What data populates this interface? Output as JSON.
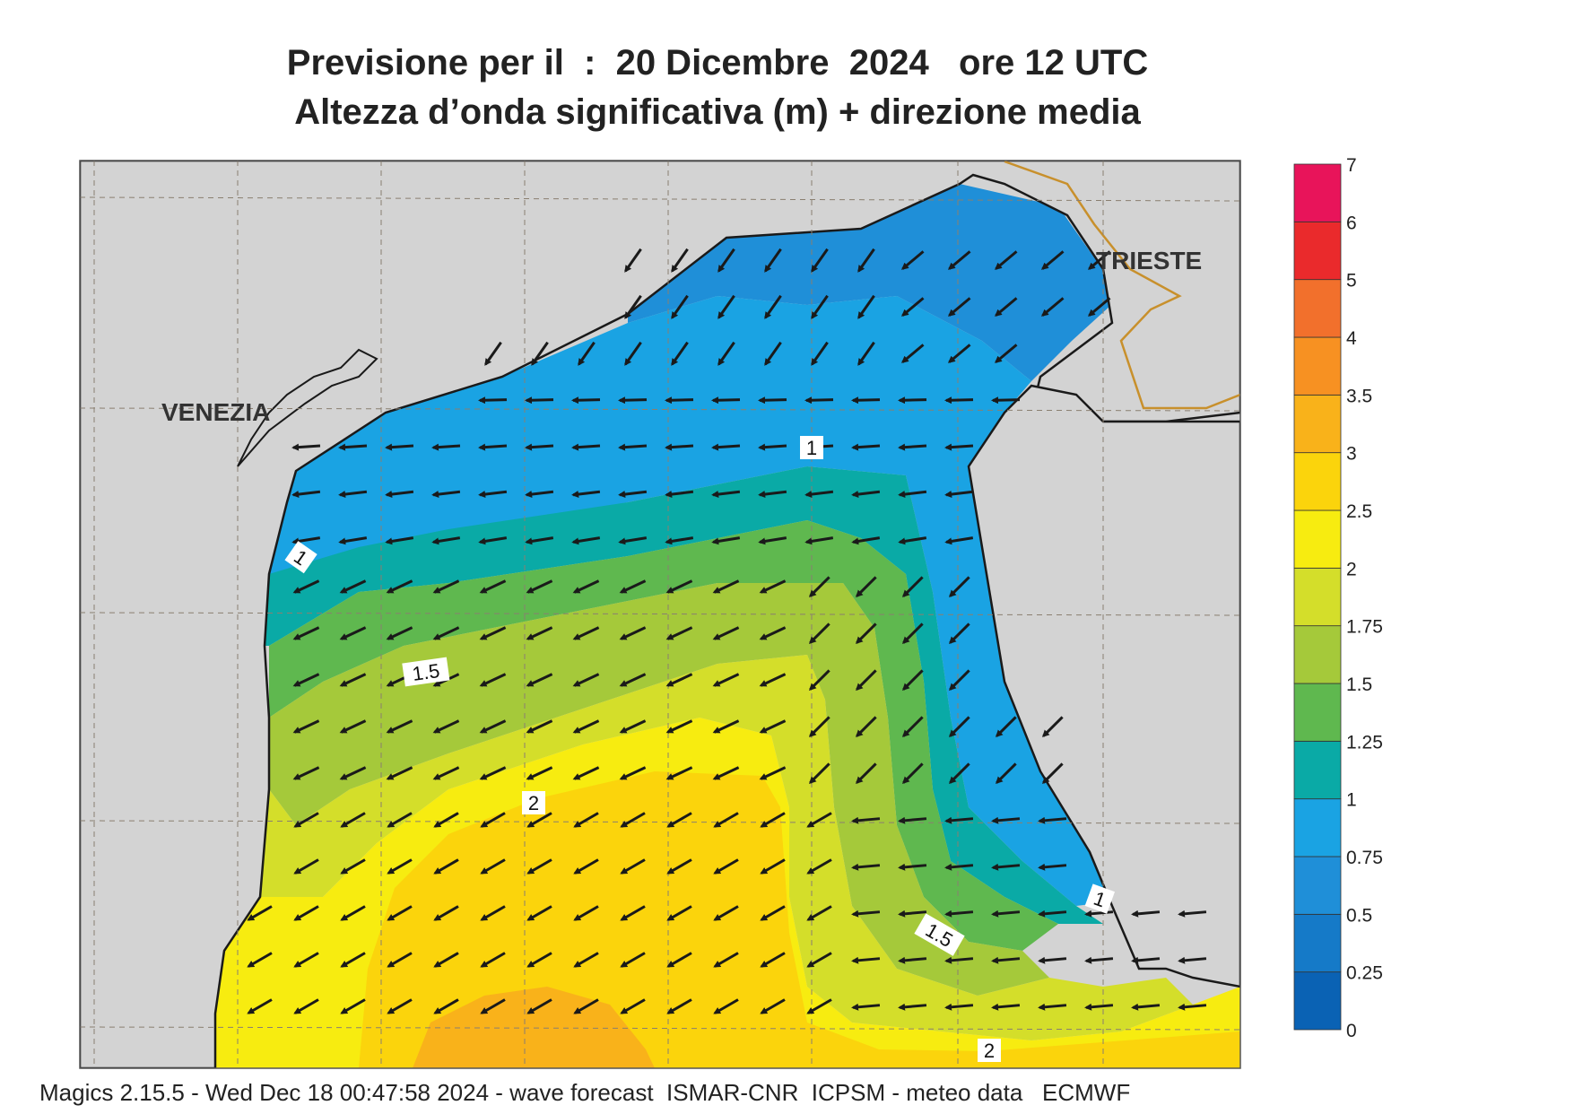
{
  "title_line1": "Previsione per il  :  20 Dicembre  2024   ore 12 UTC",
  "title_line2": "Altezza d’onda significativa (m) + direzione media",
  "footer": "Magics 2.15.5 - Wed Dec 18 00:47:58 2024 - wave forecast  ISMAR-CNR  ICPSM - meteo data   ECMWF",
  "places": [
    {
      "name": "VENEZIA"
    },
    {
      "name": "TRIESTE"
    }
  ],
  "contour_labels": [
    "1",
    "1",
    "1.5",
    "2",
    "1.5",
    "2",
    "1"
  ],
  "legend": {
    "levels": [
      "0",
      "0.25",
      "0.5",
      "0.75",
      "1",
      "1.25",
      "1.5",
      "1.75",
      "2",
      "2.5",
      "3",
      "3.5",
      "4",
      "5",
      "6",
      "7"
    ],
    "colors": [
      "#0a62b4",
      "#157ac8",
      "#1f8fd8",
      "#1aa3e3",
      "#0aaaa6",
      "#5fb84f",
      "#a5c93a",
      "#d4de2a",
      "#f7ec10",
      "#fbd40c",
      "#f9b21a",
      "#f79122",
      "#f2702c",
      "#ea2a2c",
      "#e8145a"
    ]
  },
  "colors": {
    "land": "#d3d3d3",
    "coast": "#1a1a1a",
    "border": "#c8902c",
    "grid": "#8a7f70"
  }
}
